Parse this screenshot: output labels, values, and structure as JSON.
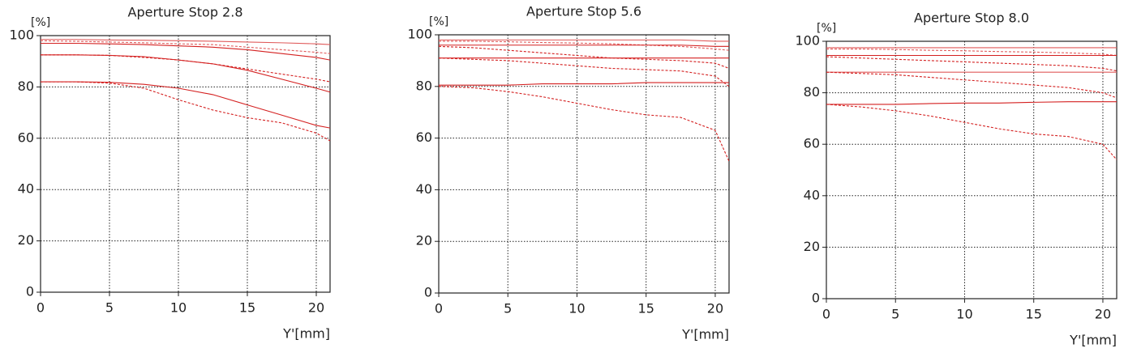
{
  "chart_data": [
    {
      "type": "line",
      "title": "Aperture Stop 2.8",
      "y_label": "[%]",
      "x_label": "Y'[mm]",
      "x": [
        0,
        2.5,
        5,
        7.5,
        10,
        12.5,
        15,
        17.5,
        20,
        21
      ],
      "xlim": [
        0,
        21
      ],
      "xticks": [
        0,
        5,
        10,
        15,
        20
      ],
      "ylim": [
        0,
        100
      ],
      "yticks": [
        0,
        20,
        40,
        60,
        80,
        100
      ],
      "grid": true,
      "series": [
        {
          "color": "#e05a5a",
          "dash": false,
          "values": [
            98.5,
            98.5,
            98.3,
            98.2,
            98,
            97.8,
            97.5,
            97.2,
            96.8,
            96.5
          ]
        },
        {
          "color": "#e05a5a",
          "dash": true,
          "values": [
            98,
            97.8,
            97.5,
            97.2,
            96.8,
            96.5,
            95.5,
            94.5,
            93.5,
            93
          ]
        },
        {
          "color": "#d42020",
          "dash": false,
          "values": [
            97,
            97,
            96.8,
            96.5,
            96,
            95.5,
            94.5,
            93,
            91.5,
            90.5
          ]
        },
        {
          "color": "#d42020",
          "dash": true,
          "values": [
            92.5,
            92.5,
            92.3,
            91.5,
            90.5,
            89,
            87,
            85,
            83,
            82
          ]
        },
        {
          "color": "#d42020",
          "dash": false,
          "values": [
            92.5,
            92.5,
            92.3,
            91.8,
            90.5,
            89,
            86.5,
            83,
            79.5,
            78
          ]
        },
        {
          "color": "#d42020",
          "dash": true,
          "values": [
            82,
            82,
            81.5,
            79.5,
            75,
            71,
            68,
            66,
            62,
            59
          ]
        },
        {
          "color": "#d42020",
          "dash": false,
          "values": [
            82,
            82,
            81.8,
            81,
            79.5,
            77,
            73,
            69,
            65,
            64
          ]
        }
      ]
    },
    {
      "type": "line",
      "title": "Aperture Stop 5.6",
      "y_label": "[%]",
      "x_label": "Y'[mm]",
      "x": [
        0,
        2.5,
        5,
        7.5,
        10,
        12.5,
        15,
        17.5,
        20,
        21
      ],
      "xlim": [
        0,
        21
      ],
      "xticks": [
        0,
        5,
        10,
        15,
        20
      ],
      "ylim": [
        0,
        100
      ],
      "yticks": [
        0,
        20,
        40,
        60,
        80,
        100
      ],
      "grid": true,
      "series": [
        {
          "color": "#e05a5a",
          "dash": false,
          "values": [
            98,
            98,
            98,
            98,
            98,
            98,
            98,
            98,
            97.5,
            97.5
          ]
        },
        {
          "color": "#e05a5a",
          "dash": true,
          "values": [
            97.5,
            97.5,
            97.3,
            97,
            96.8,
            96.5,
            96,
            95.5,
            94.5,
            94
          ]
        },
        {
          "color": "#d42020",
          "dash": false,
          "values": [
            96,
            96,
            96,
            96,
            96,
            96,
            96,
            96,
            95.5,
            95.5
          ]
        },
        {
          "color": "#d42020",
          "dash": true,
          "values": [
            95.5,
            95,
            94,
            93,
            92,
            91,
            90.5,
            90,
            89,
            87
          ]
        },
        {
          "color": "#d42020",
          "dash": false,
          "values": [
            91,
            91,
            91,
            91,
            91,
            91,
            91,
            91,
            91,
            91
          ]
        },
        {
          "color": "#d42020",
          "dash": true,
          "values": [
            91,
            90.5,
            90,
            89,
            88,
            87,
            86.5,
            86,
            84,
            80
          ]
        },
        {
          "color": "#d42020",
          "dash": false,
          "values": [
            80.5,
            80.5,
            80.5,
            81,
            81,
            81,
            81.5,
            81.5,
            81.5,
            81.5
          ]
        },
        {
          "color": "#d42020",
          "dash": true,
          "values": [
            80,
            79.5,
            78,
            76,
            73.5,
            71,
            69,
            68,
            63,
            51
          ]
        }
      ]
    },
    {
      "type": "line",
      "title": "Aperture Stop 8.0",
      "y_label": "[%]",
      "x_label": "Y'[mm]",
      "x": [
        0,
        2.5,
        5,
        7.5,
        10,
        12.5,
        15,
        17.5,
        20,
        21
      ],
      "xlim": [
        0,
        21
      ],
      "xticks": [
        0,
        5,
        10,
        15,
        20
      ],
      "ylim": [
        0,
        100
      ],
      "yticks": [
        0,
        20,
        40,
        60,
        80,
        100
      ],
      "grid": true,
      "series": [
        {
          "color": "#e05a5a",
          "dash": false,
          "values": [
            97.5,
            97.5,
            97.5,
            97.5,
            97.5,
            97.5,
            97.5,
            97.5,
            97.5,
            97.5
          ]
        },
        {
          "color": "#e05a5a",
          "dash": true,
          "values": [
            97,
            97,
            96.8,
            96.5,
            96.3,
            96,
            95.8,
            95.5,
            95,
            94.5
          ]
        },
        {
          "color": "#d42020",
          "dash": false,
          "values": [
            94.5,
            94.5,
            94.5,
            94.5,
            94.5,
            94.5,
            94.5,
            94.5,
            94.5,
            94.5
          ]
        },
        {
          "color": "#d42020",
          "dash": true,
          "values": [
            94,
            93.5,
            93,
            92.5,
            92,
            91.5,
            91,
            90.5,
            89.5,
            88.5
          ]
        },
        {
          "color": "#e05a5a",
          "dash": false,
          "values": [
            88,
            88,
            88,
            88,
            88,
            88,
            88,
            88,
            88,
            88
          ]
        },
        {
          "color": "#d42020",
          "dash": true,
          "values": [
            88,
            87.5,
            87,
            86,
            85,
            84,
            83,
            82,
            80,
            78
          ]
        },
        {
          "color": "#d42020",
          "dash": false,
          "values": [
            75.5,
            75.5,
            75.5,
            75.8,
            76,
            76,
            76.3,
            76.5,
            76.5,
            76.5
          ]
        },
        {
          "color": "#d42020",
          "dash": true,
          "values": [
            75.5,
            74.5,
            73,
            71,
            68.5,
            66,
            64,
            63,
            60,
            54
          ]
        }
      ]
    }
  ]
}
